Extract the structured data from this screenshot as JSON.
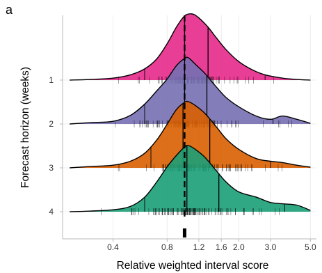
{
  "panel_label": "a",
  "chart_data": {
    "type": "ridgeline",
    "xlabel": "Relative weighted interval score",
    "ylabel": "Forecast horizon (weeks)",
    "x_scale": "log",
    "xlim": [
      0.21,
      5.4
    ],
    "x_ticks": [
      0.4,
      0.8,
      1.2,
      1.6,
      2.0,
      3.0,
      5.0
    ],
    "x_tick_labels": [
      "0.4",
      "0.8",
      "1.2",
      "1.6",
      "2.0",
      "3.0",
      "5.0"
    ],
    "reference_line": 1.0,
    "grid": true,
    "series": [
      {
        "name": "1",
        "color": "#e7298a",
        "quantiles": [
          0.6,
          1.0,
          1.35,
          2.8
        ],
        "density": [
          [
            0.23,
            0.0
          ],
          [
            0.3,
            0.01
          ],
          [
            0.4,
            0.03
          ],
          [
            0.5,
            0.08
          ],
          [
            0.6,
            0.17
          ],
          [
            0.7,
            0.32
          ],
          [
            0.8,
            0.55
          ],
          [
            0.9,
            0.8
          ],
          [
            1.0,
            0.97
          ],
          [
            1.1,
            1.0
          ],
          [
            1.2,
            0.94
          ],
          [
            1.35,
            0.8
          ],
          [
            1.5,
            0.64
          ],
          [
            1.7,
            0.46
          ],
          [
            2.0,
            0.28
          ],
          [
            2.4,
            0.15
          ],
          [
            2.8,
            0.08
          ],
          [
            3.5,
            0.03
          ],
          [
            4.2,
            0.01
          ],
          [
            5.0,
            0.0
          ]
        ]
      },
      {
        "name": "2",
        "color": "#7570b3",
        "quantiles": [
          0.6,
          1.0,
          1.33,
          3.1
        ],
        "density": [
          [
            0.23,
            0.0
          ],
          [
            0.3,
            0.02
          ],
          [
            0.4,
            0.04
          ],
          [
            0.5,
            0.13
          ],
          [
            0.6,
            0.3
          ],
          [
            0.7,
            0.5
          ],
          [
            0.8,
            0.68
          ],
          [
            0.9,
            0.88
          ],
          [
            1.0,
            0.99
          ],
          [
            1.05,
            1.0
          ],
          [
            1.15,
            0.9
          ],
          [
            1.3,
            0.76
          ],
          [
            1.5,
            0.56
          ],
          [
            1.7,
            0.4
          ],
          [
            2.0,
            0.26
          ],
          [
            2.5,
            0.12
          ],
          [
            3.0,
            0.07
          ],
          [
            3.5,
            0.12
          ],
          [
            4.2,
            0.07
          ],
          [
            5.0,
            0.01
          ]
        ]
      },
      {
        "name": "3",
        "color": "#d95f02",
        "quantiles": [
          0.65,
          0.98,
          1.38,
          3.0
        ],
        "density": [
          [
            0.23,
            0.0
          ],
          [
            0.3,
            0.02
          ],
          [
            0.4,
            0.04
          ],
          [
            0.5,
            0.1
          ],
          [
            0.6,
            0.22
          ],
          [
            0.7,
            0.42
          ],
          [
            0.8,
            0.66
          ],
          [
            0.9,
            0.88
          ],
          [
            1.0,
            0.99
          ],
          [
            1.05,
            1.0
          ],
          [
            1.15,
            0.94
          ],
          [
            1.3,
            0.82
          ],
          [
            1.5,
            0.62
          ],
          [
            1.7,
            0.44
          ],
          [
            2.0,
            0.28
          ],
          [
            2.5,
            0.14
          ],
          [
            3.0,
            0.1
          ],
          [
            3.5,
            0.08
          ],
          [
            4.2,
            0.04
          ],
          [
            5.0,
            0.01
          ]
        ]
      },
      {
        "name": "4",
        "color": "#1b9e77",
        "quantiles": [
          0.6,
          1.03,
          1.55,
          3.6
        ],
        "density": [
          [
            0.23,
            0.0
          ],
          [
            0.3,
            0.01
          ],
          [
            0.4,
            0.03
          ],
          [
            0.5,
            0.08
          ],
          [
            0.6,
            0.22
          ],
          [
            0.7,
            0.45
          ],
          [
            0.8,
            0.68
          ],
          [
            0.9,
            0.85
          ],
          [
            1.0,
            0.98
          ],
          [
            1.05,
            1.0
          ],
          [
            1.15,
            0.94
          ],
          [
            1.3,
            0.82
          ],
          [
            1.5,
            0.62
          ],
          [
            1.7,
            0.45
          ],
          [
            2.0,
            0.3
          ],
          [
            2.5,
            0.22
          ],
          [
            3.0,
            0.14
          ],
          [
            3.5,
            0.12
          ],
          [
            4.2,
            0.1
          ],
          [
            5.0,
            0.02
          ]
        ]
      }
    ]
  }
}
